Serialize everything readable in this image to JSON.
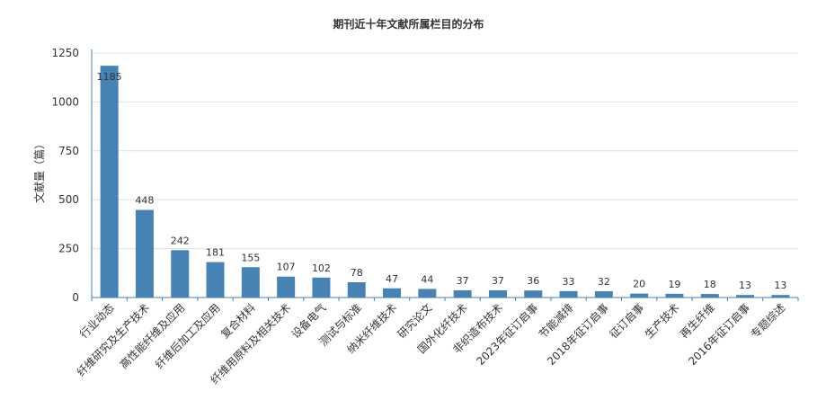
{
  "chart_data": {
    "type": "bar",
    "title": "期刊近十年文献所属栏目的分布",
    "ylabel": "文献量（篇）",
    "xlabel": "",
    "ylim": [
      0,
      1250
    ],
    "yticks": [
      0,
      250,
      500,
      750,
      1000,
      1250
    ],
    "grid": true,
    "legend": "none",
    "categories": [
      "行业动态",
      "纤维研究及生产技术",
      "高性能纤维及应用",
      "纤维后加工及应用",
      "复合材料",
      "纤维用原料及相关技术",
      "设备电气",
      "测试与标准",
      "纳米纤维技术",
      "研究论文",
      "国外化纤技术",
      "非织造布技术",
      "2023年征订启事",
      "节能减排",
      "2018年征订启事",
      "征订启事",
      "生产技术",
      "再生纤维",
      "2016年征订启事",
      "专题综述"
    ],
    "values": [
      1185,
      448,
      242,
      181,
      155,
      107,
      102,
      78,
      47,
      44,
      37,
      37,
      36,
      33,
      32,
      20,
      19,
      18,
      13,
      13
    ],
    "colors": {
      "bar": "#4682b4",
      "grid": "#e0e0e0",
      "axis": "#4682b4"
    }
  }
}
